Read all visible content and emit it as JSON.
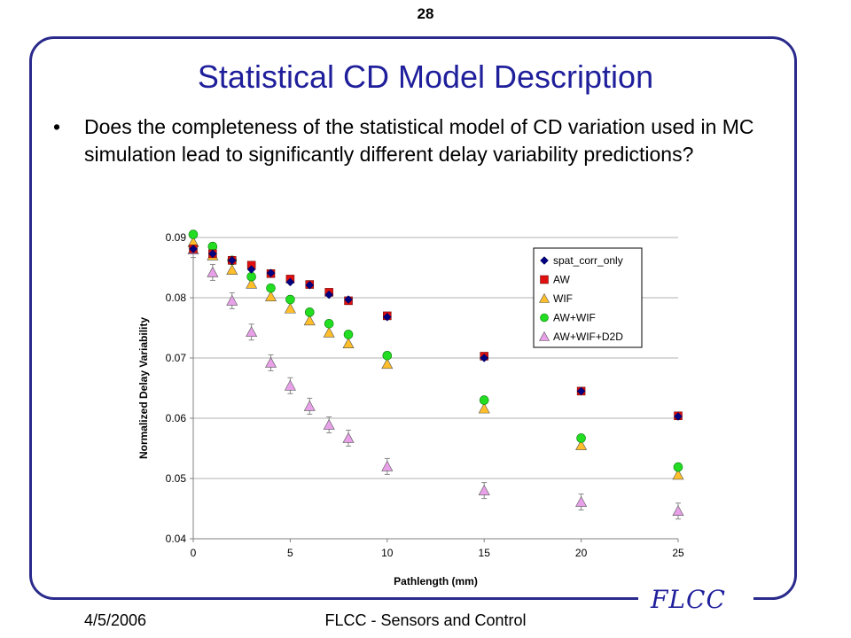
{
  "page_number": "28",
  "title": "Statistical CD Model Description",
  "bullet": {
    "mark": "•",
    "text": "Does the completeness of the statistical model of CD variation used in MC simulation lead to significantly different delay variability predictions?"
  },
  "footer": {
    "date": "4/5/2006",
    "center": "FLCC - Sensors and Control",
    "logo": "FLCC"
  },
  "chart_data": {
    "type": "scatter",
    "xlabel": "Pathlength (mm)",
    "ylabel": "Normalized Delay Variability",
    "xlim": [
      0,
      25
    ],
    "ylim": [
      0.04,
      0.09
    ],
    "xticks": [
      0,
      5,
      10,
      15,
      20,
      25
    ],
    "xtick_labels": [
      "0",
      "5",
      "10",
      "15",
      "20",
      "25"
    ],
    "yticks": [
      0.04,
      0.05,
      0.06,
      0.07,
      0.08,
      0.09
    ],
    "ytick_labels": [
      "0.04",
      "0.05",
      "0.06",
      "0.07",
      "0.08",
      "0.09"
    ],
    "grid": "horizontal",
    "legend_position": "top-right",
    "series": [
      {
        "name": "spat_corr_only",
        "marker": "diamond",
        "color": "#000080",
        "x": [
          0,
          1,
          2,
          3,
          4,
          5,
          6,
          7,
          8,
          10,
          15,
          20,
          25
        ],
        "y": [
          0.0881,
          0.0873,
          0.0862,
          0.0847,
          0.0841,
          0.0826,
          0.0821,
          0.0805,
          0.0797,
          0.0768,
          0.07,
          0.0645,
          0.0603
        ]
      },
      {
        "name": "AW",
        "marker": "square",
        "color": "#e01010",
        "x": [
          0,
          1,
          2,
          3,
          4,
          5,
          6,
          7,
          8,
          10,
          15,
          20,
          25
        ],
        "y": [
          0.0881,
          0.0873,
          0.0862,
          0.0854,
          0.084,
          0.0831,
          0.0822,
          0.0809,
          0.0795,
          0.077,
          0.0703,
          0.0645,
          0.0604
        ]
      },
      {
        "name": "WIF",
        "marker": "triangle",
        "color": "#ffbe2a",
        "x": [
          0,
          1,
          2,
          3,
          4,
          5,
          6,
          7,
          8,
          10,
          15,
          20,
          25
        ],
        "y": [
          0.0892,
          0.087,
          0.0846,
          0.0823,
          0.0802,
          0.0782,
          0.0762,
          0.0742,
          0.0724,
          0.069,
          0.0616,
          0.0555,
          0.0506
        ]
      },
      {
        "name": "AW+WIF",
        "marker": "circle",
        "color": "#22dd22",
        "x": [
          0,
          1,
          2,
          3,
          4,
          5,
          6,
          7,
          8,
          10,
          15,
          20,
          25
        ],
        "y": [
          0.0905,
          0.0885,
          0.0862,
          0.0835,
          0.0816,
          0.0797,
          0.0776,
          0.0757,
          0.0739,
          0.0704,
          0.063,
          0.0567,
          0.0519
        ]
      },
      {
        "name": "AW+WIF+D2D",
        "marker": "triangle",
        "color": "#e8a0e8",
        "x": [
          0,
          1,
          2,
          3,
          4,
          5,
          6,
          7,
          8,
          10,
          15,
          20,
          25
        ],
        "y": [
          0.088,
          0.0842,
          0.0795,
          0.0743,
          0.0692,
          0.0654,
          0.062,
          0.0589,
          0.0567,
          0.052,
          0.048,
          0.0461,
          0.0446
        ]
      }
    ]
  }
}
